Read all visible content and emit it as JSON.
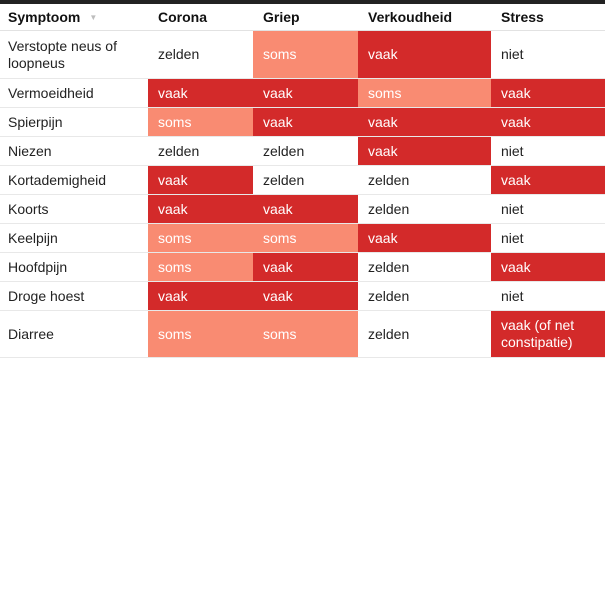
{
  "columns": [
    "Symptoom",
    "Corona",
    "Griep",
    "Verkoudheid",
    "Stress"
  ],
  "sort_icon": "sort-down-triangle-icon",
  "colors": {
    "vaak": "#d32a2a",
    "soms": "#f98b72",
    "zelden": "#ffffff",
    "niet": "#ffffff"
  },
  "rows": [
    {
      "symptom": "Verstopte neus of loopneus",
      "corona": "zelden",
      "griep": "soms",
      "verkoudheid": "vaak",
      "stress": "niet"
    },
    {
      "symptom": "Vermoeidheid",
      "corona": "vaak",
      "griep": "vaak",
      "verkoudheid": "soms",
      "stress": "vaak"
    },
    {
      "symptom": "Spierpijn",
      "corona": "soms",
      "griep": "vaak",
      "verkoudheid": "vaak",
      "stress": "vaak"
    },
    {
      "symptom": "Niezen",
      "corona": "zelden",
      "griep": "zelden",
      "verkoudheid": "vaak",
      "stress": "niet"
    },
    {
      "symptom": "Kortademigheid",
      "corona": "vaak",
      "griep": "zelden",
      "verkoudheid": "zelden",
      "stress": "vaak"
    },
    {
      "symptom": "Koorts",
      "corona": "vaak",
      "griep": "vaak",
      "verkoudheid": "zelden",
      "stress": "niet"
    },
    {
      "symptom": "Keelpijn",
      "corona": "soms",
      "griep": "soms",
      "verkoudheid": "vaak",
      "stress": "niet"
    },
    {
      "symptom": "Hoofdpijn",
      "corona": "soms",
      "griep": "vaak",
      "verkoudheid": "zelden",
      "stress": "vaak"
    },
    {
      "symptom": "Droge hoest",
      "corona": "vaak",
      "griep": "vaak",
      "verkoudheid": "zelden",
      "stress": "niet"
    },
    {
      "symptom": "Diarree",
      "corona": "soms",
      "griep": "soms",
      "verkoudheid": "zelden",
      "stress": "vaak (of net constipatie)"
    }
  ]
}
